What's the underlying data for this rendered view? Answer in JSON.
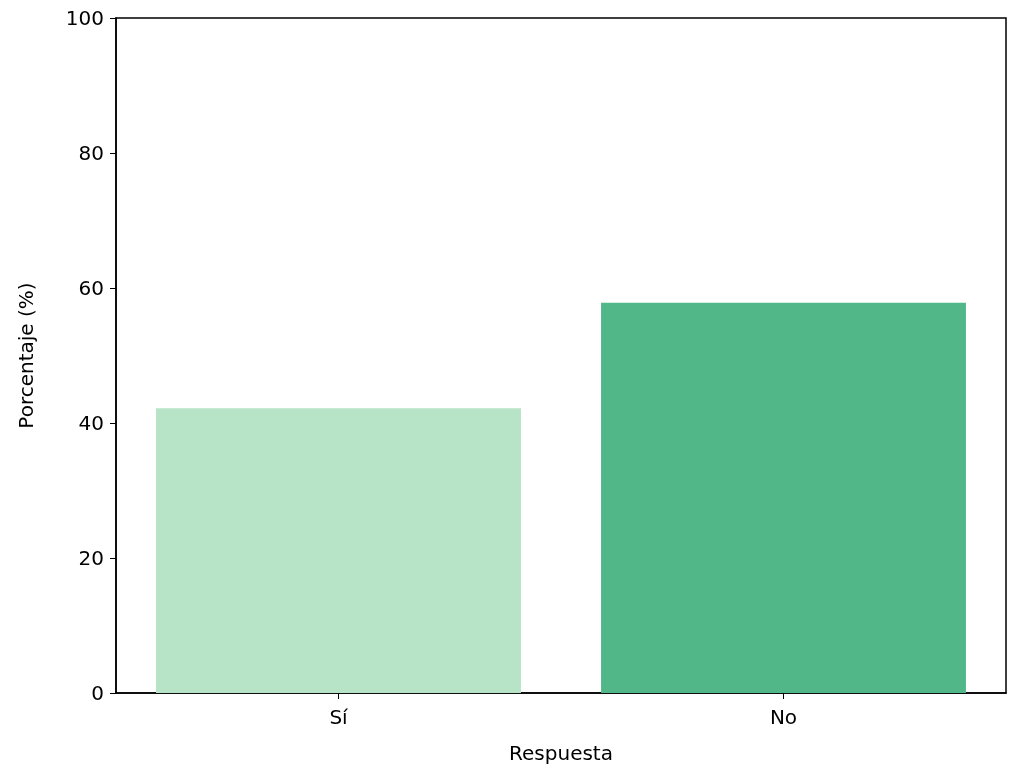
{
  "chart_data": {
    "type": "bar",
    "xlabel": "Respuesta",
    "ylabel": "Porcentaje (%)",
    "categories": [
      "Sí",
      "No"
    ],
    "values": [
      42.2,
      57.8
    ],
    "colors": [
      "#b7e4c7",
      "#52b788"
    ],
    "ylim": [
      0,
      100
    ],
    "yticks": [
      0,
      20,
      40,
      60,
      80,
      100
    ],
    "grid": false
  }
}
